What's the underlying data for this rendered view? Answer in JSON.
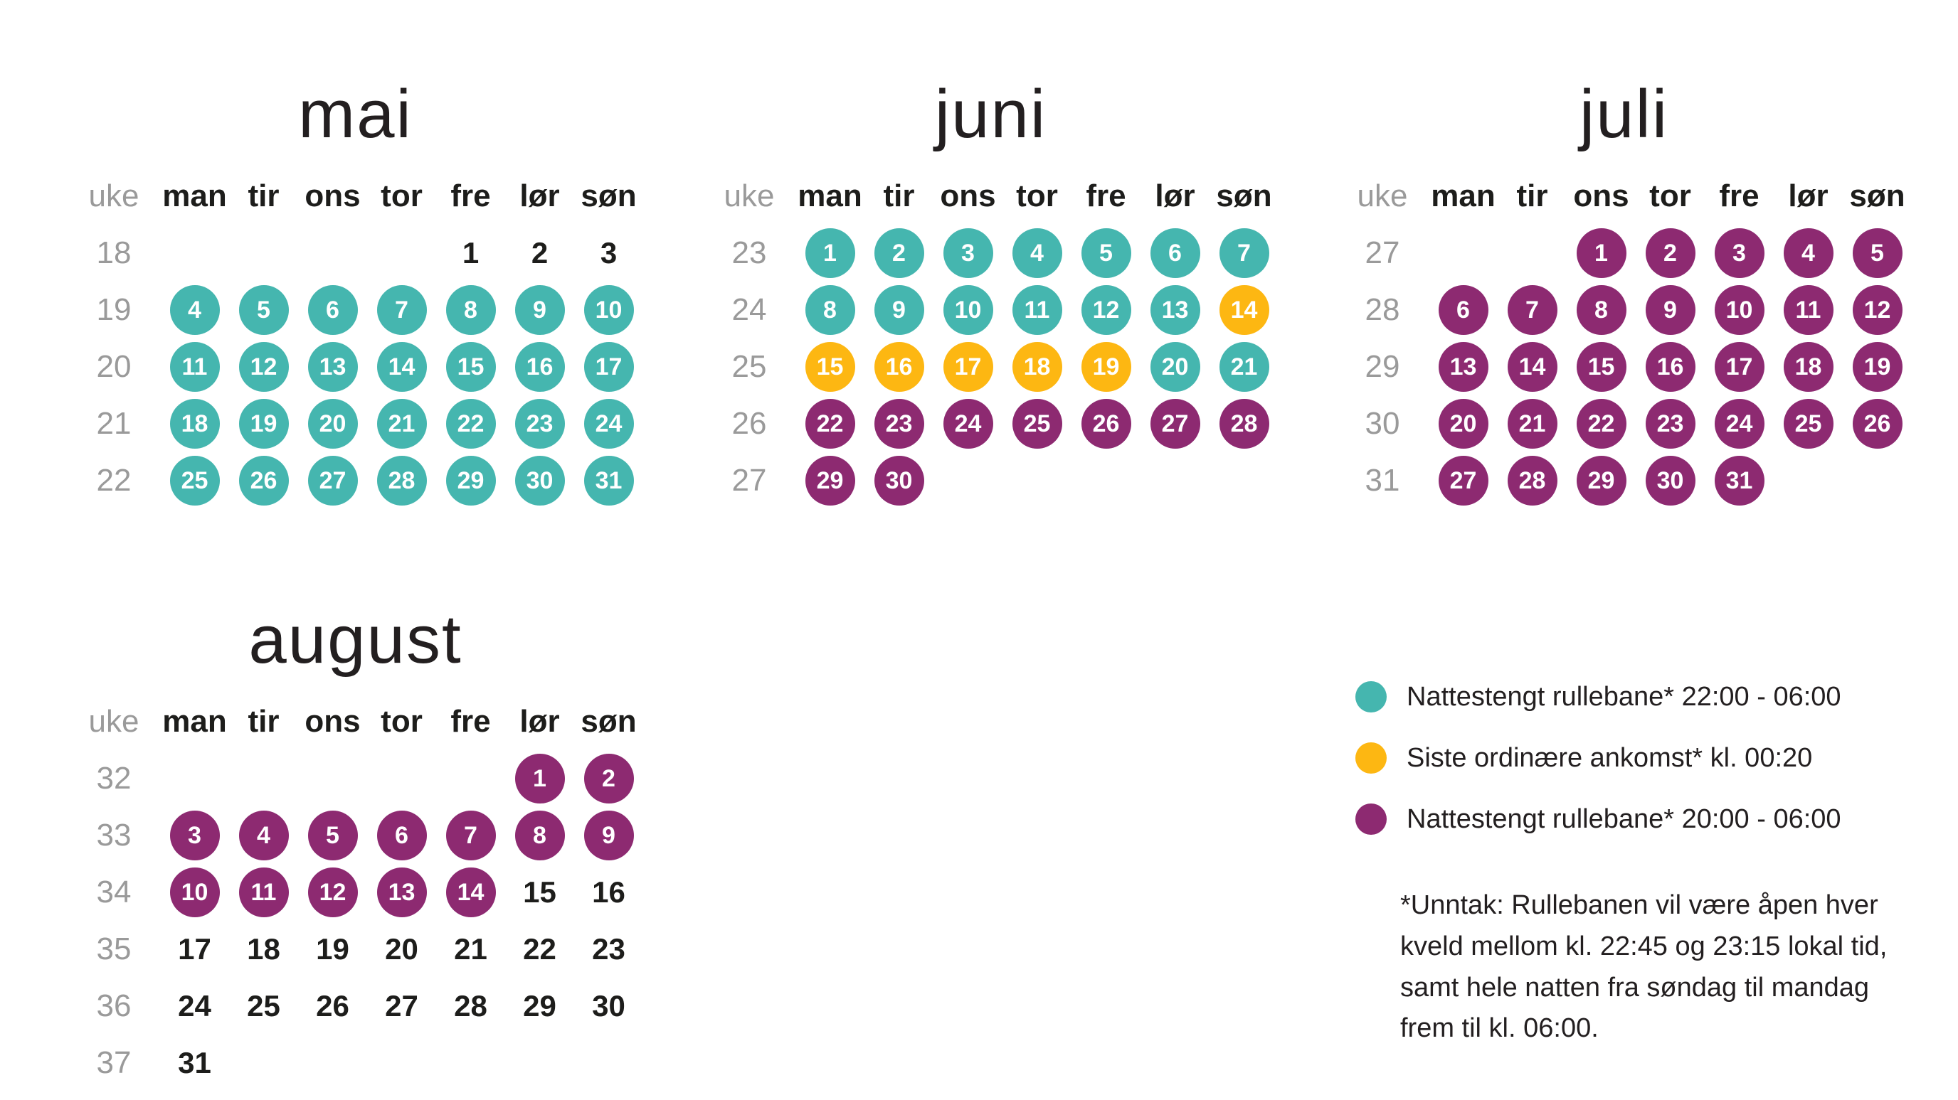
{
  "labels": {
    "week_column": "uke"
  },
  "weekdays": [
    "man",
    "tir",
    "ons",
    "tor",
    "fre",
    "lør",
    "søn"
  ],
  "colors": {
    "teal": "#45b6af",
    "yellow": "#fdb712",
    "purple": "#8d2a71",
    "week_text": "#9a9a9a",
    "day_text": "#1d1d1b"
  },
  "months": [
    {
      "name": "mai",
      "weeks": [
        {
          "week": 18,
          "days": [
            null,
            null,
            null,
            null,
            {
              "day": 1,
              "mark": "none"
            },
            {
              "day": 2,
              "mark": "none"
            },
            {
              "day": 3,
              "mark": "none"
            }
          ]
        },
        {
          "week": 19,
          "days": [
            {
              "day": 4,
              "mark": "teal"
            },
            {
              "day": 5,
              "mark": "teal"
            },
            {
              "day": 6,
              "mark": "teal"
            },
            {
              "day": 7,
              "mark": "teal"
            },
            {
              "day": 8,
              "mark": "teal"
            },
            {
              "day": 9,
              "mark": "teal"
            },
            {
              "day": 10,
              "mark": "teal"
            }
          ]
        },
        {
          "week": 20,
          "days": [
            {
              "day": 11,
              "mark": "teal"
            },
            {
              "day": 12,
              "mark": "teal"
            },
            {
              "day": 13,
              "mark": "teal"
            },
            {
              "day": 14,
              "mark": "teal"
            },
            {
              "day": 15,
              "mark": "teal"
            },
            {
              "day": 16,
              "mark": "teal"
            },
            {
              "day": 17,
              "mark": "teal"
            }
          ]
        },
        {
          "week": 21,
          "days": [
            {
              "day": 18,
              "mark": "teal"
            },
            {
              "day": 19,
              "mark": "teal"
            },
            {
              "day": 20,
              "mark": "teal"
            },
            {
              "day": 21,
              "mark": "teal"
            },
            {
              "day": 22,
              "mark": "teal"
            },
            {
              "day": 23,
              "mark": "teal"
            },
            {
              "day": 24,
              "mark": "teal"
            }
          ]
        },
        {
          "week": 22,
          "days": [
            {
              "day": 25,
              "mark": "teal"
            },
            {
              "day": 26,
              "mark": "teal"
            },
            {
              "day": 27,
              "mark": "teal"
            },
            {
              "day": 28,
              "mark": "teal"
            },
            {
              "day": 29,
              "mark": "teal"
            },
            {
              "day": 30,
              "mark": "teal"
            },
            {
              "day": 31,
              "mark": "teal"
            }
          ]
        }
      ]
    },
    {
      "name": "juni",
      "weeks": [
        {
          "week": 23,
          "days": [
            {
              "day": 1,
              "mark": "teal"
            },
            {
              "day": 2,
              "mark": "teal"
            },
            {
              "day": 3,
              "mark": "teal"
            },
            {
              "day": 4,
              "mark": "teal"
            },
            {
              "day": 5,
              "mark": "teal"
            },
            {
              "day": 6,
              "mark": "teal"
            },
            {
              "day": 7,
              "mark": "teal"
            }
          ]
        },
        {
          "week": 24,
          "days": [
            {
              "day": 8,
              "mark": "teal"
            },
            {
              "day": 9,
              "mark": "teal"
            },
            {
              "day": 10,
              "mark": "teal"
            },
            {
              "day": 11,
              "mark": "teal"
            },
            {
              "day": 12,
              "mark": "teal"
            },
            {
              "day": 13,
              "mark": "teal"
            },
            {
              "day": 14,
              "mark": "yellow"
            }
          ]
        },
        {
          "week": 25,
          "days": [
            {
              "day": 15,
              "mark": "yellow"
            },
            {
              "day": 16,
              "mark": "yellow"
            },
            {
              "day": 17,
              "mark": "yellow"
            },
            {
              "day": 18,
              "mark": "yellow"
            },
            {
              "day": 19,
              "mark": "yellow"
            },
            {
              "day": 20,
              "mark": "teal"
            },
            {
              "day": 21,
              "mark": "teal"
            }
          ]
        },
        {
          "week": 26,
          "days": [
            {
              "day": 22,
              "mark": "purple"
            },
            {
              "day": 23,
              "mark": "purple"
            },
            {
              "day": 24,
              "mark": "purple"
            },
            {
              "day": 25,
              "mark": "purple"
            },
            {
              "day": 26,
              "mark": "purple"
            },
            {
              "day": 27,
              "mark": "purple"
            },
            {
              "day": 28,
              "mark": "purple"
            }
          ]
        },
        {
          "week": 27,
          "days": [
            {
              "day": 29,
              "mark": "purple"
            },
            {
              "day": 30,
              "mark": "purple"
            },
            null,
            null,
            null,
            null,
            null
          ]
        }
      ]
    },
    {
      "name": "juli",
      "weeks": [
        {
          "week": 27,
          "days": [
            null,
            null,
            {
              "day": 1,
              "mark": "purple"
            },
            {
              "day": 2,
              "mark": "purple"
            },
            {
              "day": 3,
              "mark": "purple"
            },
            {
              "day": 4,
              "mark": "purple"
            },
            {
              "day": 5,
              "mark": "purple"
            }
          ]
        },
        {
          "week": 28,
          "days": [
            {
              "day": 6,
              "mark": "purple"
            },
            {
              "day": 7,
              "mark": "purple"
            },
            {
              "day": 8,
              "mark": "purple"
            },
            {
              "day": 9,
              "mark": "purple"
            },
            {
              "day": 10,
              "mark": "purple"
            },
            {
              "day": 11,
              "mark": "purple"
            },
            {
              "day": 12,
              "mark": "purple"
            }
          ]
        },
        {
          "week": 29,
          "days": [
            {
              "day": 13,
              "mark": "purple"
            },
            {
              "day": 14,
              "mark": "purple"
            },
            {
              "day": 15,
              "mark": "purple"
            },
            {
              "day": 16,
              "mark": "purple"
            },
            {
              "day": 17,
              "mark": "purple"
            },
            {
              "day": 18,
              "mark": "purple"
            },
            {
              "day": 19,
              "mark": "purple"
            }
          ]
        },
        {
          "week": 30,
          "days": [
            {
              "day": 20,
              "mark": "purple"
            },
            {
              "day": 21,
              "mark": "purple"
            },
            {
              "day": 22,
              "mark": "purple"
            },
            {
              "day": 23,
              "mark": "purple"
            },
            {
              "day": 24,
              "mark": "purple"
            },
            {
              "day": 25,
              "mark": "purple"
            },
            {
              "day": 26,
              "mark": "purple"
            }
          ]
        },
        {
          "week": 31,
          "days": [
            {
              "day": 27,
              "mark": "purple"
            },
            {
              "day": 28,
              "mark": "purple"
            },
            {
              "day": 29,
              "mark": "purple"
            },
            {
              "day": 30,
              "mark": "purple"
            },
            {
              "day": 31,
              "mark": "purple"
            },
            null,
            null
          ]
        }
      ]
    },
    {
      "name": "august",
      "weeks": [
        {
          "week": 32,
          "days": [
            null,
            null,
            null,
            null,
            null,
            {
              "day": 1,
              "mark": "purple"
            },
            {
              "day": 2,
              "mark": "purple"
            }
          ]
        },
        {
          "week": 33,
          "days": [
            {
              "day": 3,
              "mark": "purple"
            },
            {
              "day": 4,
              "mark": "purple"
            },
            {
              "day": 5,
              "mark": "purple"
            },
            {
              "day": 6,
              "mark": "purple"
            },
            {
              "day": 7,
              "mark": "purple"
            },
            {
              "day": 8,
              "mark": "purple"
            },
            {
              "day": 9,
              "mark": "purple"
            }
          ]
        },
        {
          "week": 34,
          "days": [
            {
              "day": 10,
              "mark": "purple"
            },
            {
              "day": 11,
              "mark": "purple"
            },
            {
              "day": 12,
              "mark": "purple"
            },
            {
              "day": 13,
              "mark": "purple"
            },
            {
              "day": 14,
              "mark": "purple"
            },
            {
              "day": 15,
              "mark": "none"
            },
            {
              "day": 16,
              "mark": "none"
            }
          ]
        },
        {
          "week": 35,
          "days": [
            {
              "day": 17,
              "mark": "none"
            },
            {
              "day": 18,
              "mark": "none"
            },
            {
              "day": 19,
              "mark": "none"
            },
            {
              "day": 20,
              "mark": "none"
            },
            {
              "day": 21,
              "mark": "none"
            },
            {
              "day": 22,
              "mark": "none"
            },
            {
              "day": 23,
              "mark": "none"
            }
          ]
        },
        {
          "week": 36,
          "days": [
            {
              "day": 24,
              "mark": "none"
            },
            {
              "day": 25,
              "mark": "none"
            },
            {
              "day": 26,
              "mark": "none"
            },
            {
              "day": 27,
              "mark": "none"
            },
            {
              "day": 28,
              "mark": "none"
            },
            {
              "day": 29,
              "mark": "none"
            },
            {
              "day": 30,
              "mark": "none"
            }
          ]
        },
        {
          "week": 37,
          "days": [
            {
              "day": 31,
              "mark": "none"
            },
            null,
            null,
            null,
            null,
            null,
            null
          ]
        }
      ]
    }
  ],
  "legend": {
    "items": [
      {
        "key": "teal",
        "label": "Nattestengt rullebane* 22:00 - 06:00"
      },
      {
        "key": "yellow",
        "label": "Siste ordinære ankomst* kl. 00:20"
      },
      {
        "key": "purple",
        "label": "Nattestengt rullebane* 20:00 - 06:00"
      }
    ]
  },
  "footnote": "*Unntak: Rullebanen vil være åpen hver\nkveld mellom kl. 22:45 og 23:15 lokal tid,\nsamt hele natten fra søndag til mandag\nfrem til kl. 06:00."
}
